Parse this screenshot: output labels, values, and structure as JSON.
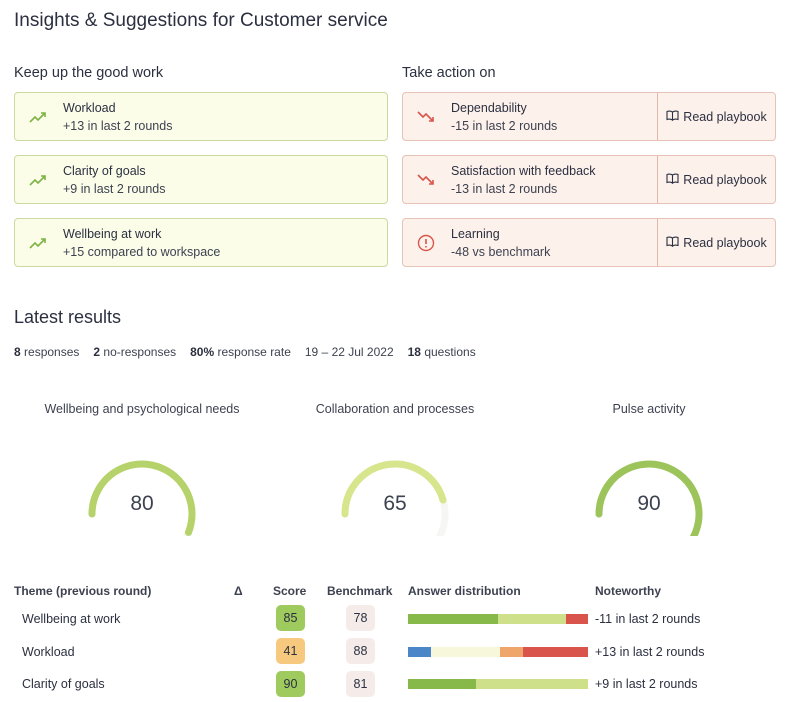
{
  "page": {
    "title": "Insights & Suggestions for Customer service"
  },
  "insights": {
    "good_heading": "Keep up the good work",
    "bad_heading": "Take action on",
    "good": [
      {
        "title": "Workload",
        "detail": "+13 in last 2 rounds",
        "icon": "trend-up-icon"
      },
      {
        "title": "Clarity of goals",
        "detail": "+9 in last 2 rounds",
        "icon": "trend-up-icon"
      },
      {
        "title": "Wellbeing at work",
        "detail": "+15 compared to workspace",
        "icon": "trend-up-icon"
      }
    ],
    "bad": [
      {
        "title": "Dependability",
        "detail": "-15 in last 2 rounds",
        "icon": "trend-down-icon",
        "action": "Read playbook"
      },
      {
        "title": "Satisfaction with feedback",
        "detail": "-13 in last 2 rounds",
        "icon": "trend-down-icon",
        "action": "Read playbook"
      },
      {
        "title": "Learning",
        "detail": "-48 vs benchmark",
        "icon": "alert-circle-icon",
        "action": "Read playbook"
      }
    ]
  },
  "latest": {
    "title": "Latest results",
    "stats": {
      "responses_count": "8",
      "responses_label": " responses",
      "noresponses_count": "2",
      "noresponses_label": " no-responses",
      "rate_value": "80%",
      "rate_label": " response rate",
      "date_range": "19 – 22 Jul 2022",
      "questions_count": "18",
      "questions_label": " questions"
    },
    "gauges": [
      {
        "label": "Wellbeing and psychological needs",
        "value": "80",
        "fraction": 0.8,
        "color": "#b5d36a"
      },
      {
        "label": "Collaboration and processes",
        "value": "65",
        "fraction": 0.65,
        "color": "#d7e68d"
      },
      {
        "label": "Pulse activity",
        "value": "90",
        "fraction": 0.9,
        "color": "#9cc45a"
      }
    ]
  },
  "table": {
    "headers": {
      "theme": "Theme (previous round)",
      "delta": "Δ",
      "score": "Score",
      "benchmark": "Benchmark",
      "distribution": "Answer distribution",
      "noteworthy": "Noteworthy"
    },
    "rows": [
      {
        "theme": "Wellbeing at work",
        "score": "85",
        "score_color": "#9fca5e",
        "benchmark": "78",
        "distribution": [
          {
            "pct": 50,
            "color": "#86b84a"
          },
          {
            "pct": 38,
            "color": "#cfe08a"
          },
          {
            "pct": 12,
            "color": "#d9544a"
          }
        ],
        "noteworthy": "-11 in last 2 rounds"
      },
      {
        "theme": "Workload",
        "score": "41",
        "score_color": "#f6c97e",
        "benchmark": "88",
        "distribution": [
          {
            "pct": 13,
            "color": "#4a86c8"
          },
          {
            "pct": 38,
            "color": "#f7f7dc"
          },
          {
            "pct": 13,
            "color": "#eea66b"
          },
          {
            "pct": 36,
            "color": "#d9544a"
          }
        ],
        "noteworthy": "+13 in last 2 rounds"
      },
      {
        "theme": "Clarity of goals",
        "score": "90",
        "score_color": "#9fca5e",
        "benchmark": "81",
        "distribution": [
          {
            "pct": 38,
            "color": "#86b84a"
          },
          {
            "pct": 62,
            "color": "#cfe08a"
          }
        ],
        "noteworthy": "+9 in last 2 rounds"
      }
    ]
  }
}
